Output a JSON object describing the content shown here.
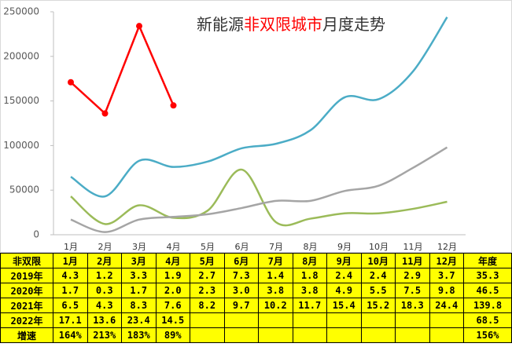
{
  "chart_data": {
    "type": "line",
    "title_parts": [
      {
        "text": "新能源",
        "color": "#333333"
      },
      {
        "text": "非双限城市",
        "color": "#ff0000"
      },
      {
        "text": "月度走势",
        "color": "#333333"
      }
    ],
    "categories": [
      "1月",
      "2月",
      "3月",
      "4月",
      "5月",
      "6月",
      "7月",
      "8月",
      "9月",
      "10月",
      "11月",
      "12月"
    ],
    "ylim": [
      0,
      250000
    ],
    "yticks": [
      0,
      50000,
      100000,
      150000,
      200000,
      250000
    ],
    "series": [
      {
        "color": "#9bbb59",
        "smooth": true,
        "values": [
          43000,
          12000,
          33000,
          19000,
          27000,
          73000,
          14000,
          18000,
          24000,
          24000,
          29000,
          37000
        ]
      },
      {
        "color": "#a5a5a5",
        "smooth": true,
        "values": [
          17000,
          3000,
          17000,
          20000,
          23000,
          30000,
          38000,
          38000,
          49000,
          55000,
          75000,
          98000
        ]
      },
      {
        "color": "#4bacc6",
        "smooth": true,
        "values": [
          65000,
          43000,
          83000,
          76000,
          82000,
          97000,
          102000,
          117000,
          154000,
          152000,
          183000,
          244000
        ]
      },
      {
        "color": "#ff0000",
        "smooth": false,
        "markers": true,
        "values": [
          171000,
          136000,
          234000,
          145000,
          null,
          null,
          null,
          null,
          null,
          null,
          null,
          null
        ]
      }
    ]
  },
  "table": {
    "rows": [
      [
        "非双限",
        "1月",
        "2月",
        "3月",
        "4月",
        "5月",
        "6月",
        "7月",
        "8月",
        "9月",
        "10月",
        "11月",
        "12月",
        "年度"
      ],
      [
        "2019年",
        "4.3",
        "1.2",
        "3.3",
        "1.9",
        "2.7",
        "7.3",
        "1.4",
        "1.8",
        "2.4",
        "2.4",
        "2.9",
        "3.7",
        "35.3"
      ],
      [
        "2020年",
        "1.7",
        "0.3",
        "1.7",
        "2.0",
        "2.3",
        "3.0",
        "3.8",
        "3.8",
        "4.9",
        "5.5",
        "7.5",
        "9.8",
        "46.5"
      ],
      [
        "2021年",
        "6.5",
        "4.3",
        "8.3",
        "7.6",
        "8.2",
        "9.7",
        "10.2",
        "11.7",
        "15.4",
        "15.2",
        "18.3",
        "24.4",
        "139.8"
      ],
      [
        "2022年",
        "17.1",
        "13.6",
        "23.4",
        "14.5",
        null,
        null,
        null,
        null,
        null,
        null,
        null,
        null,
        "68.5"
      ],
      [
        "增速",
        "164%",
        "213%",
        "183%",
        "89%",
        null,
        null,
        null,
        null,
        null,
        null,
        null,
        null,
        "156%"
      ]
    ]
  }
}
